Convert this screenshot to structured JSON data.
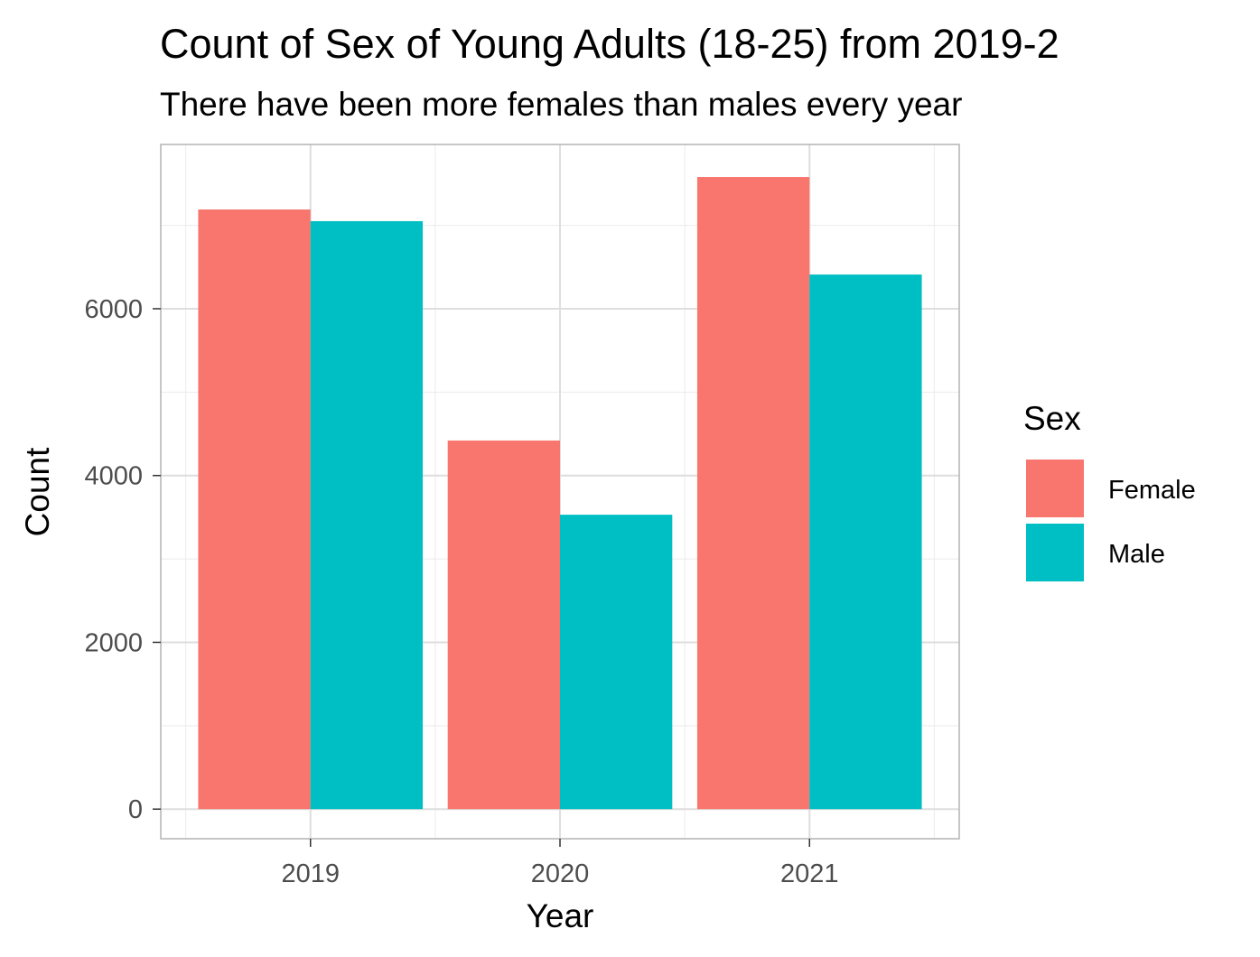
{
  "chart_data": {
    "type": "bar",
    "title": "Count of Sex of Young Adults (18-25) from 2019-2",
    "subtitle": "There have been more females than males every year",
    "xlabel": "Year",
    "ylabel": "Count",
    "categories": [
      "2019",
      "2020",
      "2021"
    ],
    "series": [
      {
        "name": "Female",
        "color": "#F8766D",
        "values": [
          7190,
          4420,
          7580
        ]
      },
      {
        "name": "Male",
        "color": "#00BFC4",
        "values": [
          7050,
          3530,
          6410
        ]
      }
    ],
    "yticks": [
      0,
      2000,
      4000,
      6000
    ],
    "ytick_labels": [
      "0",
      "2000",
      "4000",
      "6000"
    ],
    "ylim": [
      -355,
      7970
    ],
    "grid": true,
    "legend": {
      "title": "Sex",
      "position": "right"
    }
  }
}
